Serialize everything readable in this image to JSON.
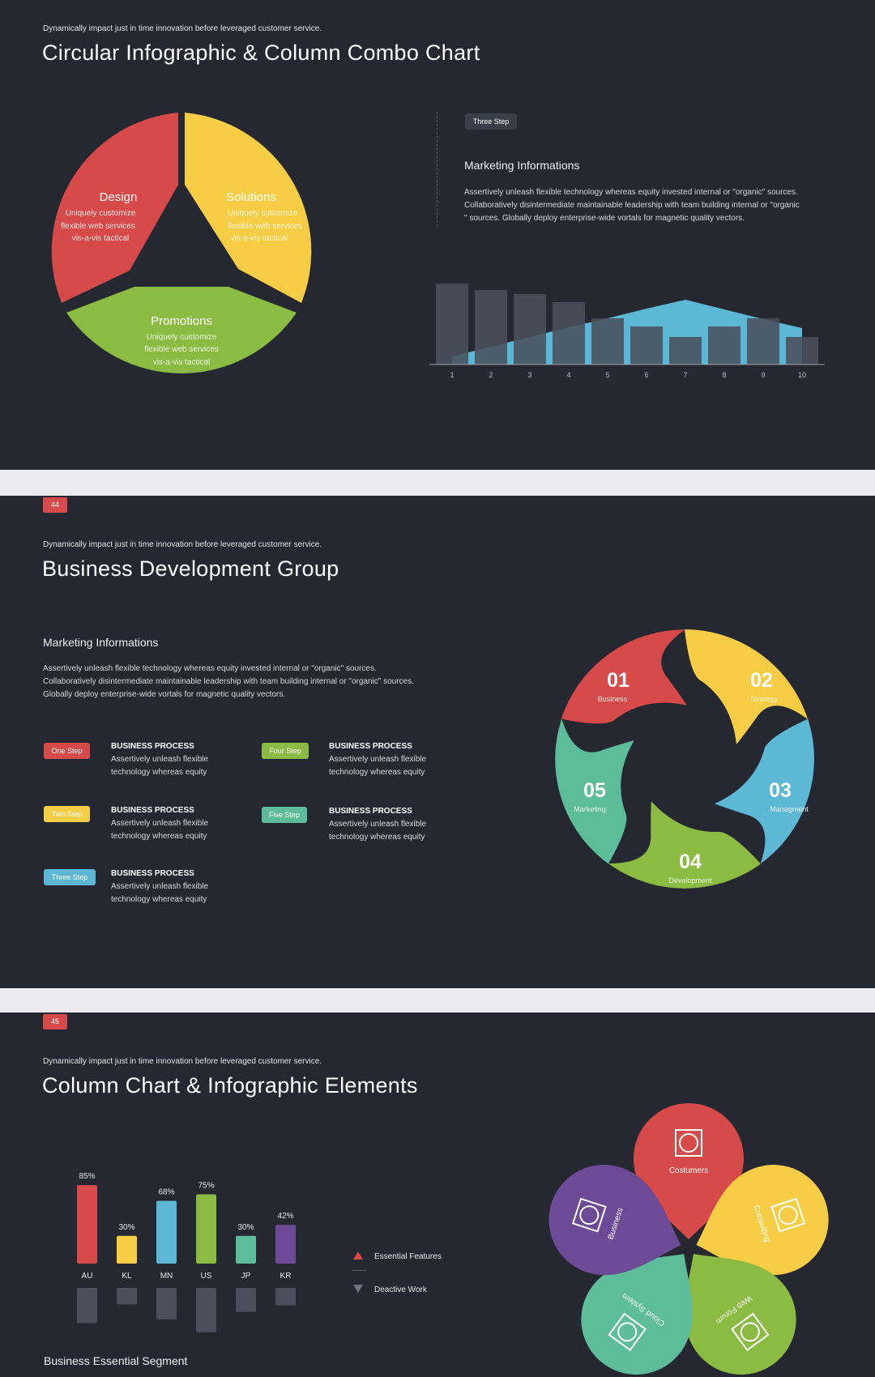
{
  "slide1": {
    "subtitle": "Dynamically impact just in time innovation before leveraged customer service.",
    "title": "Circular Infographic & Column Combo Chart",
    "pie": {
      "design": {
        "title": "Design",
        "lines": [
          "Uniquely customize",
          "flexible web services",
          "vis-a-vis tactical"
        ],
        "color": "#d64a49"
      },
      "solutions": {
        "title": "Solutions",
        "lines": [
          "Uniquely customize",
          "flexible web services",
          "vis-a-vis tactical"
        ],
        "color": "#f8cd46"
      },
      "promotions": {
        "title": "Promotions",
        "lines": [
          "Uniquely customize",
          "flexible web services",
          "vis-a-vis tactical"
        ],
        "color": "#8bbb43"
      }
    },
    "tag": "Three Step",
    "heading": "Marketing Informations",
    "paragraph": [
      "Assertively unleash flexible technology whereas equity invested internal or \"organic\" sources.",
      "Collaboratively disintermediate maintainable leadership with team building internal or \"organic",
      "\" sources. Globally deploy enterprise-wide vortals for magnetic quality vectors."
    ]
  },
  "slide2": {
    "badge": "44",
    "subtitle": "Dynamically impact just in time innovation before leveraged customer service.",
    "title": "Business Development Group",
    "heading": "Marketing Informations",
    "paragraph": [
      "Assertively unleash flexible technology whereas equity invested internal or \"organic\" sources.",
      "Collaboratively disintermediate maintainable leadership with team building internal or \"organic\" sources.",
      "Globally deploy enterprise-wide vortals for magnetic quality vectors."
    ],
    "steps": [
      {
        "tag": "One Step",
        "color": "#d64a49",
        "title": "BUSINESS PROCESS",
        "lines": [
          "Assertively unleash flexible",
          "technology whereas equity"
        ]
      },
      {
        "tag": "Two Step",
        "color": "#f8cd46",
        "title": "BUSINESS PROCESS",
        "lines": [
          "Assertively unleash flexible",
          "technology whereas equity"
        ]
      },
      {
        "tag": "Three Step",
        "color": "#5db8d6",
        "title": "BUSINESS PROCESS",
        "lines": [
          "Assertively unleash flexible",
          "technology whereas equity"
        ]
      },
      {
        "tag": "Four Step",
        "color": "#8bbb43",
        "title": "BUSINESS PROCESS",
        "lines": [
          "Assertively unleash flexible",
          "technology whereas equity"
        ]
      },
      {
        "tag": "Five Step",
        "color": "#5dbd9a",
        "title": "BUSINESS PROCESS",
        "lines": [
          "Assertively unleash flexible",
          "technology whereas equity"
        ]
      }
    ],
    "cycle": [
      {
        "num": "01",
        "label": "Business",
        "color": "#d64a49"
      },
      {
        "num": "02",
        "label": "Strategy",
        "color": "#f8cd46"
      },
      {
        "num": "03",
        "label": "Managment",
        "color": "#5db8d6"
      },
      {
        "num": "04",
        "label": "Development",
        "color": "#8bbb43"
      },
      {
        "num": "05",
        "label": "Marketing",
        "color": "#5dbd9a"
      }
    ]
  },
  "slide3": {
    "badge": "45",
    "subtitle": "Dynamically impact just in time innovation before leveraged customer service.",
    "title": "Column Chart & Infographic Elements",
    "legend": {
      "up": "Essential Features",
      "down": "Deactive Work"
    },
    "segment_title": "Business Essential Segment",
    "petals": [
      {
        "label": "Costumers",
        "color": "#d64a49"
      },
      {
        "label": "Consulting",
        "color": "#f8cd46"
      },
      {
        "label": "Web Forum",
        "color": "#8bbb43"
      },
      {
        "label": "Cloud System",
        "color": "#5dbd9a"
      },
      {
        "label": "Business",
        "color": "#6c4a96"
      }
    ]
  },
  "chart_data": [
    {
      "type": "bar",
      "categories": [
        "1",
        "2",
        "3",
        "4",
        "5",
        "6",
        "7",
        "8",
        "9",
        "10"
      ],
      "series": [
        {
          "values": [
            10,
            9.2,
            8.7,
            7.7,
            5.7,
            4.7,
            3.4,
            4.7,
            5.7,
            3.4
          ]
        },
        {
          "values": [
            1,
            2.2,
            3.4,
            4.6,
            5.7,
            6.9,
            8,
            6.8,
            5.6,
            4.5
          ]
        }
      ],
      "series_styles": [
        {
          "kind": "bar",
          "color": "#4a4f5b"
        },
        {
          "kind": "area",
          "color": "#5db8d6"
        }
      ],
      "title": "",
      "xlabel": "",
      "ylabel": "",
      "ylim": [
        0,
        10
      ],
      "grid": false
    },
    {
      "type": "bar",
      "categories": [
        "AU",
        "KL",
        "MN",
        "US",
        "JP",
        "KR"
      ],
      "values": [
        85,
        30,
        68,
        75,
        30,
        42
      ],
      "value_labels": [
        "85%",
        "30%",
        "68%",
        "75%",
        "30%",
        "42%"
      ],
      "colors": [
        "#d64a49",
        "#f8cd46",
        "#5db8d6",
        "#8bbb43",
        "#5dbd9a",
        "#6c4a96"
      ],
      "mirror_values": [
        38,
        18,
        34,
        48,
        26,
        19
      ],
      "title": "",
      "xlabel": "",
      "ylabel": "",
      "ylim": [
        0,
        100
      ],
      "grid": false
    }
  ]
}
